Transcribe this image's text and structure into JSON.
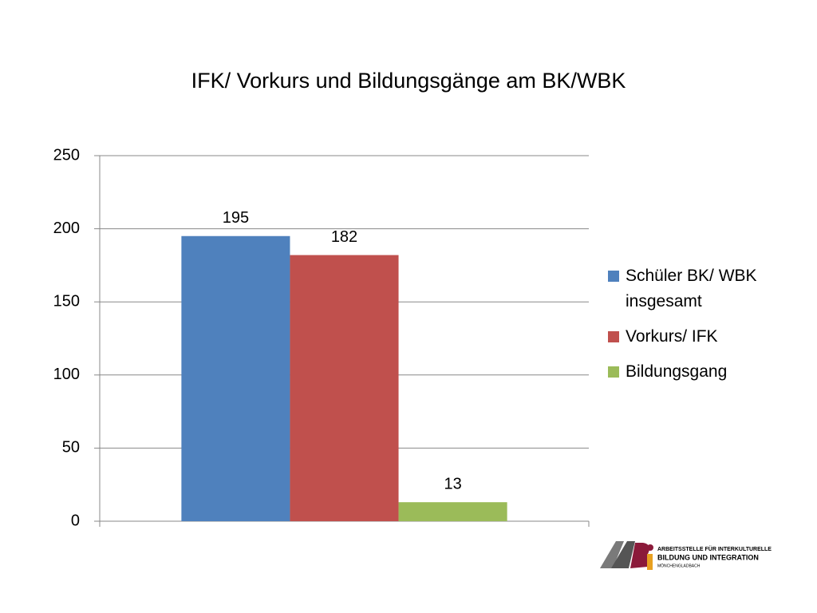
{
  "chart_data": {
    "type": "bar",
    "title": "IFK/ Vorkurs und Bildungsgänge am BK/WBK",
    "categories": [
      null
    ],
    "series": [
      {
        "name": "Schüler BK/ WBK insgesamt",
        "color": "#4f81bd",
        "values": [
          195
        ]
      },
      {
        "name": "Vorkurs/ IFK",
        "color": "#c0504d",
        "values": [
          182
        ]
      },
      {
        "name": "Bildungsgang",
        "color": "#9bbb59",
        "values": [
          13
        ]
      }
    ],
    "ylim": [
      0,
      250
    ],
    "yticks": [
      0,
      50,
      100,
      150,
      200,
      250
    ],
    "grid": true,
    "legend": "right",
    "data_labels": true
  },
  "logo": {
    "lines": [
      "ARBEITSSTELLE FÜR INTERKULTURELLE",
      "BILDUNG UND INTEGRATION",
      "MÖNCHENGLADBACH"
    ]
  }
}
